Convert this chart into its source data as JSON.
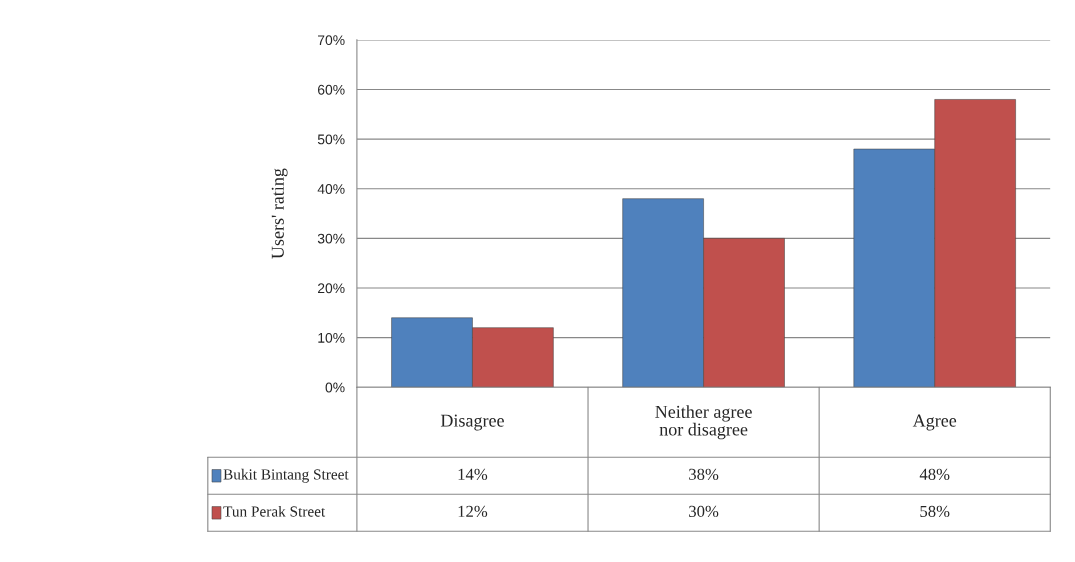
{
  "chart_data": {
    "type": "bar",
    "ylabel": "Users' rating",
    "categories": [
      "Disagree",
      "Neither agree\nnor disagree",
      "Agree"
    ],
    "series": [
      {
        "name": "Bukit Bintang Street",
        "color": "#4f81bd",
        "values": [
          14,
          38,
          48
        ],
        "value_labels": [
          "14%",
          "38%",
          "48%"
        ]
      },
      {
        "name": "Tun Perak Street",
        "color": "#c0504d",
        "values": [
          12,
          30,
          58
        ],
        "value_labels": [
          "12%",
          "30%",
          "58%"
        ]
      }
    ],
    "ylim": [
      0,
      70
    ],
    "yticks": [
      {
        "value": 0,
        "label": "0%"
      },
      {
        "value": 10,
        "label": "10%"
      },
      {
        "value": 20,
        "label": "20%"
      },
      {
        "value": 30,
        "label": "30%"
      },
      {
        "value": 40,
        "label": "40%"
      },
      {
        "value": 50,
        "label": "50%"
      },
      {
        "value": 60,
        "label": "60%"
      },
      {
        "value": 70,
        "label": "70%"
      }
    ],
    "grid": "y",
    "legend": "bottom"
  }
}
